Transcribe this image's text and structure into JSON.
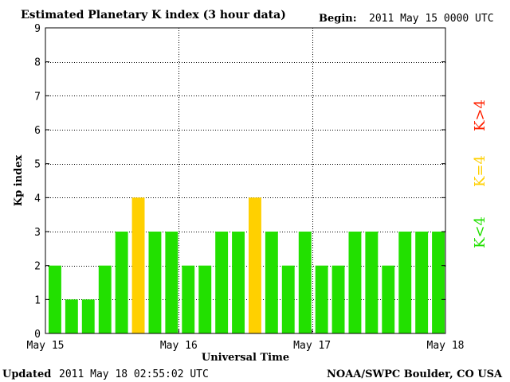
{
  "header": {
    "title": "Estimated Planetary K index (3 hour data)",
    "begin_label": "Begin:",
    "begin_value": "2011 May 15 0000 UTC"
  },
  "footer": {
    "updated_label": "Updated",
    "updated_value": "2011 May 18 02:55:02 UTC",
    "source": "NOAA/SWPC Boulder, CO USA"
  },
  "legend": [
    {
      "label": "K>4",
      "color": "#ff2000"
    },
    {
      "label": "K=4",
      "color": "#ffd000"
    },
    {
      "label": "K<4",
      "color": "#22e000"
    }
  ],
  "chart_data": {
    "type": "bar",
    "title": "Estimated Planetary K index (3 hour data)",
    "xlabel": "Universal Time",
    "ylabel": "Kp index",
    "ylim": [
      0,
      9
    ],
    "yticks": [
      0,
      1,
      2,
      3,
      4,
      5,
      6,
      7,
      8,
      9
    ],
    "xticks": [
      "May 15",
      "May 16",
      "May 17",
      "May 18"
    ],
    "grid": true,
    "values": [
      2,
      1,
      1,
      2,
      3,
      4,
      3,
      3,
      2,
      2,
      3,
      3,
      4,
      3,
      2,
      3,
      2,
      2,
      3,
      3,
      2,
      3,
      3,
      3
    ],
    "colors": {
      "below": "#22e000",
      "equal": "#ffd000",
      "above": "#ff2000"
    }
  }
}
